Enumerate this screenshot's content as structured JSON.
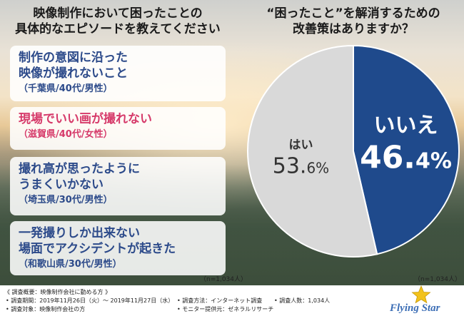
{
  "titles": {
    "left": "映像制作において困ったことの\n具体的なエピソードを教えてください",
    "right": "“困ったこと”を解消するための\n改善策はありますか？"
  },
  "episodes": [
    {
      "text": "制作の意図に沿った\n映像が撮れないこと",
      "source": "（千葉県/40代/男性）",
      "highlight": false
    },
    {
      "text": "現場でいい画が撮れない",
      "source": "（滋賀県/40代/女性）",
      "highlight": true
    },
    {
      "text": "撮れ高が思ったように\nうまくいかない",
      "source": "（埼玉県/30代/男性）",
      "highlight": false
    },
    {
      "text": "一発撮りしか出来ない\n場面でアクシデントが起きた",
      "source": "（和歌山県/30代/男性）",
      "highlight": false
    }
  ],
  "n_left": "（n=1,034人）",
  "n_right": "（n=1,034人）",
  "chart_data": {
    "type": "pie",
    "title": "“困ったこと”を解消するための改善策はありますか？",
    "slices": [
      {
        "label": "いいえ",
        "value": 46.4,
        "display_int": "46.",
        "display_dec": "4%",
        "color": "#1f4a8c",
        "text_color": "#ffffff"
      },
      {
        "label": "はい",
        "value": 53.6,
        "display_int": "53.",
        "display_dec": "6%",
        "color": "#d9d9d9",
        "text_color": "#333333"
      }
    ],
    "start": "12 o'clock, clockwise"
  },
  "footer": {
    "header": "《 調査概要：映像制作会社に勤める方 》",
    "period": "• 調査期間：2019年11月26日（火）～ 2019年11月27日（水）",
    "method": "• 調査方法：インターネット調査",
    "count": "• 調査人数：1,034人",
    "target": "• 調査対象：映像制作会社の方",
    "provider": "• モニター提供元：ゼネラルリサーチ"
  },
  "logo": {
    "name": "Flying Star",
    "star_color": "#f2c21b"
  }
}
